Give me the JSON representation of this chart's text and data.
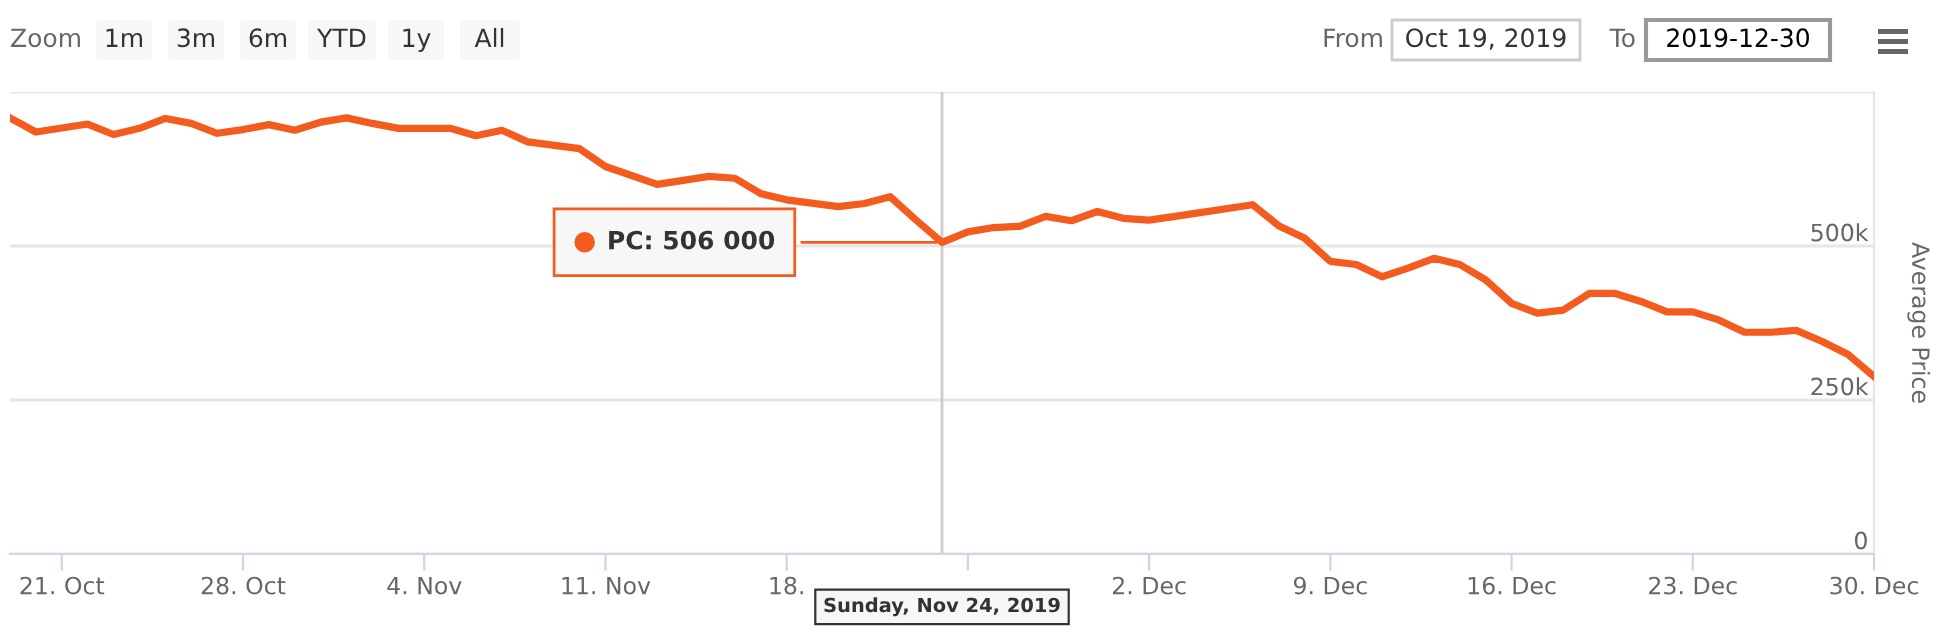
{
  "chart_data": {
    "type": "line",
    "ylabel": "Average Price",
    "x": [
      "2019-10-19",
      "2019-10-20",
      "2019-10-22",
      "2019-10-23",
      "2019-10-24",
      "2019-10-25",
      "2019-10-26",
      "2019-10-27",
      "2019-10-28",
      "2019-10-29",
      "2019-10-30",
      "2019-10-31",
      "2019-11-01",
      "2019-11-02",
      "2019-11-03",
      "2019-11-05",
      "2019-11-06",
      "2019-11-07",
      "2019-11-08",
      "2019-11-10",
      "2019-11-11",
      "2019-11-13",
      "2019-11-15",
      "2019-11-16",
      "2019-11-17",
      "2019-11-18",
      "2019-11-20",
      "2019-11-21",
      "2019-11-22",
      "2019-11-23",
      "2019-11-24",
      "2019-11-25",
      "2019-11-26",
      "2019-11-27",
      "2019-11-28",
      "2019-11-29",
      "2019-11-30",
      "2019-12-01",
      "2019-12-02",
      "2019-12-03",
      "2019-12-06",
      "2019-12-07",
      "2019-12-08",
      "2019-12-09",
      "2019-12-10",
      "2019-12-11",
      "2019-12-12",
      "2019-12-13",
      "2019-12-14",
      "2019-12-15",
      "2019-12-16",
      "2019-12-17",
      "2019-12-18",
      "2019-12-19",
      "2019-12-20",
      "2019-12-21",
      "2019-12-22",
      "2019-12-23",
      "2019-12-24",
      "2019-12-25",
      "2019-12-26",
      "2019-12-27",
      "2019-12-28",
      "2019-12-29",
      "2019-12-30"
    ],
    "series": [
      {
        "color": "#f45b1f",
        "values": [
          708000,
          685000,
          698000,
          681000,
          691000,
          707000,
          699000,
          683000,
          689000,
          697000,
          688000,
          701000,
          708000,
          699000,
          691000,
          691000,
          679000,
          688000,
          669000,
          658000,
          629000,
          600000,
          613000,
          610000,
          585000,
          575000,
          564000,
          569000,
          580000,
          542000,
          506000,
          523000,
          530000,
          532000,
          548000,
          541000,
          556000,
          545000,
          542000,
          548000,
          567000,
          533000,
          513000,
          475000,
          470000,
          450000,
          464000,
          480000,
          470000,
          445000,
          407000,
          391000,
          396000,
          423000,
          423000,
          410000,
          393000,
          393000,
          380000,
          360000,
          360000,
          363000,
          345000,
          324000,
          288000
        ]
      }
    ],
    "xlim": [
      "2019-10-19",
      "2019-12-30"
    ],
    "xticks": [
      {
        "value": "2019-10-21",
        "label": "21. Oct"
      },
      {
        "value": "2019-10-28",
        "label": "28. Oct"
      },
      {
        "value": "2019-11-04",
        "label": "4. Nov"
      },
      {
        "value": "2019-11-11",
        "label": "11. Nov"
      },
      {
        "value": "2019-11-18",
        "label": "18."
      },
      {
        "value": "2019-11-25",
        "label": null
      },
      {
        "value": "2019-12-02",
        "label": "2. Dec"
      },
      {
        "value": "2019-12-09",
        "label": "9. Dec"
      },
      {
        "value": "2019-12-16",
        "label": "16. Dec"
      },
      {
        "value": "2019-12-23",
        "label": "23. Dec"
      },
      {
        "value": "2019-12-30",
        "label": "30. Dec"
      }
    ],
    "ylim": [
      0,
      750000
    ],
    "yticks": [
      0,
      {
        "value": 250000,
        "label": "250k"
      },
      {
        "value": 500000,
        "label": "500k"
      },
      {
        "value": 750000,
        "label": null
      }
    ],
    "grid": "y",
    "legend": false,
    "line_style": "solid",
    "ref_lines": [
      {
        "axis": "x",
        "value": "2019-11-24",
        "label": null,
        "color": "#cccccc"
      }
    ],
    "annotations": [
      "Zoom",
      "1m",
      "3m",
      "6m",
      "YTD",
      "1y",
      "All",
      "From",
      "Oct 19, 2019",
      "To",
      "2019-12-30",
      {
        "text": "PC: 506 000",
        "x": "2019-11-24",
        "y": 506000
      },
      "Sunday, Nov 24, 2019"
    ]
  }
}
